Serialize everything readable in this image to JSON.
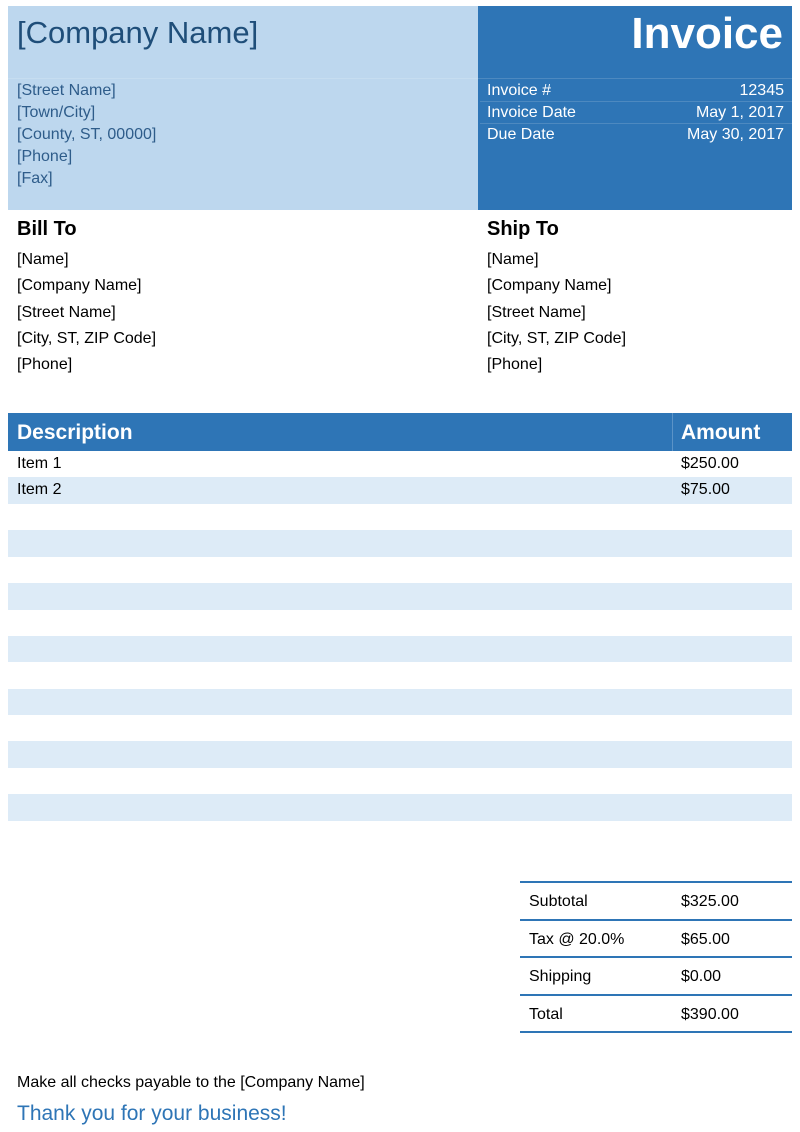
{
  "company": {
    "name": "[Company Name]",
    "address": [
      "[Street Name]",
      "[Town/City]",
      "[County, ST, 00000]",
      "[Phone]",
      "[Fax]"
    ]
  },
  "title": "Invoice",
  "meta": [
    {
      "label": "Invoice #",
      "value": "12345"
    },
    {
      "label": "Invoice Date",
      "value": "May 1, 2017"
    },
    {
      "label": "Due Date",
      "value": "May 30, 2017"
    }
  ],
  "bill_to": {
    "heading": "Bill To",
    "lines": [
      "[Name]",
      "[Company Name]",
      "[Street Name]",
      "[City, ST, ZIP Code]",
      "[Phone]"
    ]
  },
  "ship_to": {
    "heading": "Ship To",
    "lines": [
      "[Name]",
      "[Company Name]",
      "[Street Name]",
      "[City, ST, ZIP Code]",
      "[Phone]"
    ]
  },
  "table": {
    "headers": {
      "description": "Description",
      "amount": "Amount"
    },
    "rows": [
      {
        "description": "Item 1",
        "amount": "$250.00"
      },
      {
        "description": "Item 2",
        "amount": "$75.00"
      },
      {},
      {},
      {},
      {},
      {},
      {},
      {},
      {},
      {},
      {},
      {},
      {},
      {}
    ]
  },
  "totals": [
    {
      "label": "Subtotal",
      "value": "$325.00"
    },
    {
      "label": "Tax @ 20.0%",
      "value": "$65.00"
    },
    {
      "label": "Shipping",
      "value": "$0.00"
    },
    {
      "label": "Total",
      "value": "$390.00"
    }
  ],
  "footer": {
    "payable": "Make all checks payable to the [Company Name]",
    "thanks": "Thank you for your business!"
  },
  "colors": {
    "primary": "#2E75B6",
    "light": "#BDD7EE",
    "stripe": "#DDEBF7"
  }
}
